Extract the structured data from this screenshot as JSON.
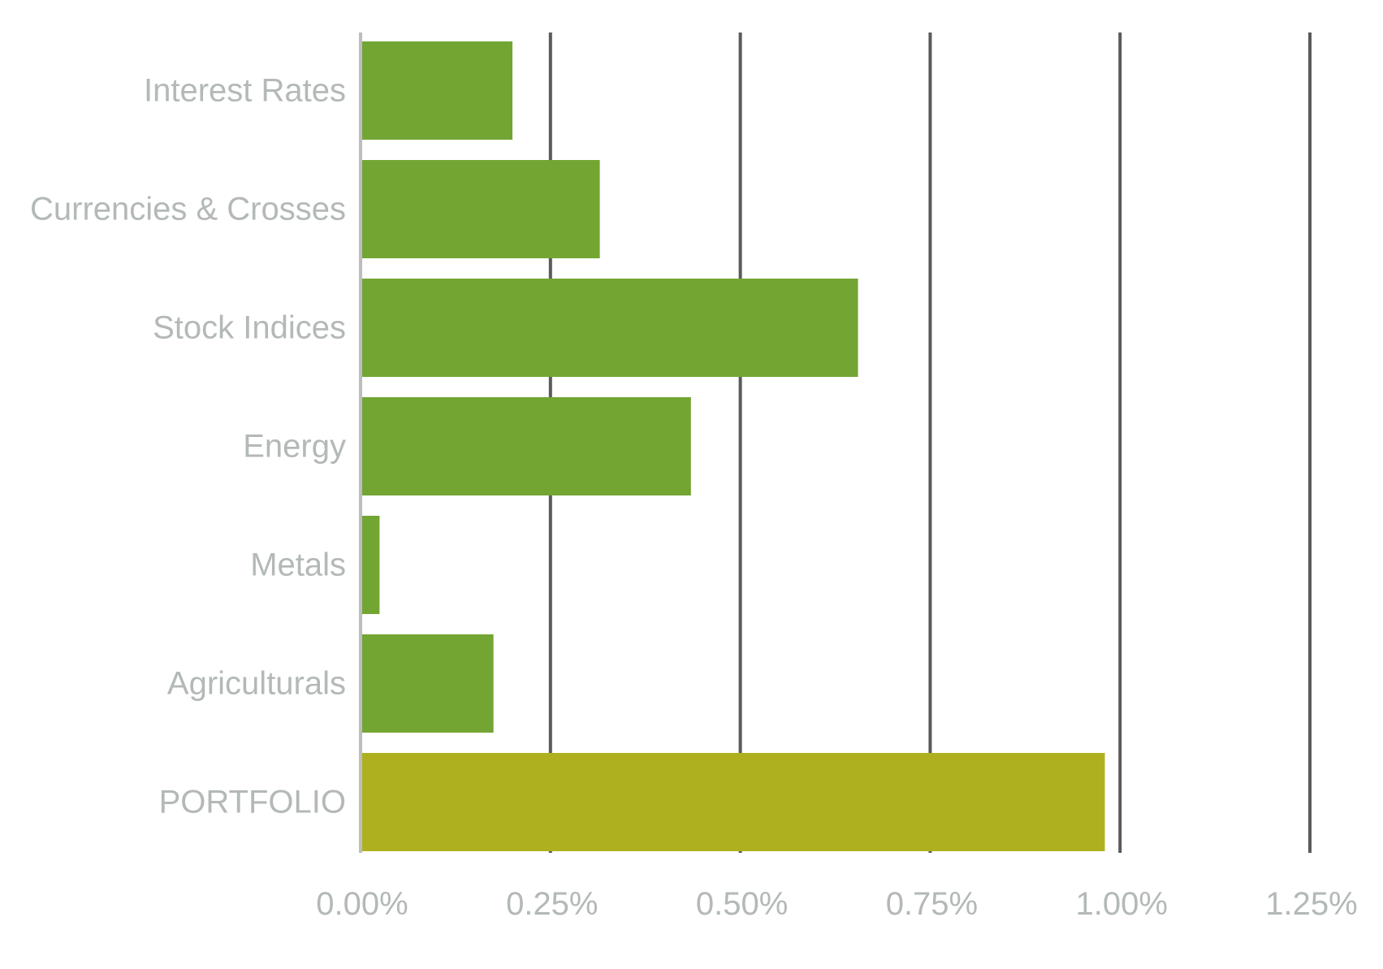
{
  "chart_data": {
    "type": "bar",
    "orientation": "horizontal",
    "categories": [
      "Interest Rates",
      "Currencies & Crosses",
      "Stock Indices",
      "Energy",
      "Metals",
      "Agriculturals",
      "PORTFOLIO"
    ],
    "values": [
      0.2,
      0.315,
      0.655,
      0.435,
      0.025,
      0.175,
      0.98
    ],
    "bar_colors": [
      "#73a533",
      "#73a533",
      "#73a533",
      "#73a533",
      "#73a533",
      "#73a533",
      "#afb020"
    ],
    "x_ticks": [
      0.0,
      0.25,
      0.5,
      0.75,
      1.0,
      1.25
    ],
    "x_tick_labels": [
      "0.00%",
      "0.25%",
      "0.50%",
      "0.75%",
      "1.00%",
      "1.25%"
    ],
    "xlim": [
      0,
      1.25
    ],
    "title": "",
    "xlabel": "",
    "ylabel": "",
    "grid": true,
    "legend": false,
    "colors": {
      "bar": "#73a533",
      "portfolio_bar": "#afb020",
      "gridline": "#5a5a5a",
      "baseline": "#bdbdbd",
      "label_text": "#b3b9b5"
    }
  }
}
